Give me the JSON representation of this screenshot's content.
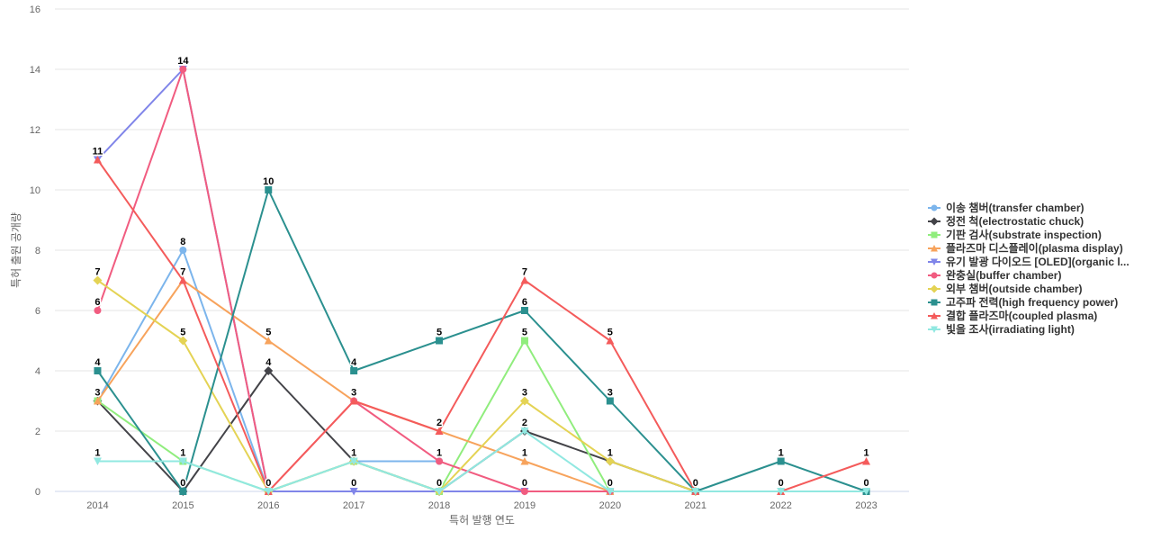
{
  "chart_data": {
    "type": "line",
    "title": "",
    "xlabel": "특허 발행 연도",
    "ylabel": "특허 출원 공개량",
    "x": [
      "2014",
      "2015",
      "2016",
      "2017",
      "2018",
      "2019",
      "2020",
      "2021",
      "2022",
      "2023"
    ],
    "ylim": [
      0,
      16
    ],
    "yticks": [
      0,
      2,
      4,
      6,
      8,
      10,
      12,
      14,
      16
    ],
    "grid": true,
    "legend_position": "right",
    "series": [
      {
        "name": "이송 챔버(transfer chamber)",
        "color": "#7cb5ec",
        "marker": "circle",
        "values": [
          3,
          8,
          0,
          1,
          1,
          null,
          null,
          null,
          null,
          null
        ],
        "labels": [
          null,
          "8",
          null,
          "1",
          "1",
          null,
          null,
          null,
          null,
          null
        ]
      },
      {
        "name": "정전 척(electrostatic chuck)",
        "color": "#434348",
        "marker": "diamond",
        "values": [
          3,
          0,
          4,
          1,
          0,
          2,
          1,
          0,
          null,
          null
        ],
        "labels": [
          null,
          "0",
          "4",
          null,
          "0",
          "2",
          null,
          null,
          null,
          null
        ]
      },
      {
        "name": "기판 검사(substrate inspection)",
        "color": "#90ed7d",
        "marker": "square",
        "values": [
          3,
          1,
          0,
          1,
          0,
          5,
          0,
          0,
          null,
          null
        ],
        "labels": [
          null,
          null,
          null,
          null,
          null,
          "5",
          null,
          null,
          null,
          null
        ]
      },
      {
        "name": "플라즈마 디스플레이(plasma display)",
        "color": "#f7a35c",
        "marker": "triangle",
        "values": [
          3,
          7,
          5,
          3,
          2,
          1,
          0,
          0,
          0,
          null
        ],
        "labels": [
          "3",
          "7",
          "5",
          null,
          null,
          "1",
          null,
          null,
          "0",
          null
        ]
      },
      {
        "name": "유기 발광 다이오드 [OLED](organic l...",
        "color": "#8085e9",
        "marker": "triangle-down",
        "values": [
          11,
          14,
          0,
          0,
          0,
          0,
          0,
          0,
          null,
          null
        ],
        "labels": [
          null,
          null,
          null,
          "0",
          null,
          null,
          null,
          null,
          null,
          null
        ]
      },
      {
        "name": "완충실(buffer chamber)",
        "color": "#f15c80",
        "marker": "circle",
        "values": [
          6,
          14,
          0,
          3,
          1,
          0,
          0,
          null,
          null,
          null
        ],
        "labels": [
          "6",
          "14",
          null,
          null,
          null,
          "0",
          "0",
          null,
          null,
          null
        ]
      },
      {
        "name": "외부 챔버(outside chamber)",
        "color": "#e4d354",
        "marker": "diamond",
        "values": [
          7,
          5,
          0,
          1,
          0,
          3,
          1,
          0,
          null,
          null
        ],
        "labels": [
          "7",
          "5",
          null,
          null,
          null,
          "3",
          "1",
          null,
          null,
          null
        ]
      },
      {
        "name": "고주파 전력(high frequency power)",
        "color": "#2b908f",
        "marker": "square",
        "values": [
          4,
          0,
          10,
          4,
          5,
          6,
          3,
          0,
          1,
          0
        ],
        "labels": [
          "4",
          null,
          "10",
          "4",
          "5",
          "6",
          "3",
          "0",
          "1",
          "0"
        ]
      },
      {
        "name": "결합 플라즈마(coupled plasma)",
        "color": "#f45b5b",
        "marker": "triangle",
        "values": [
          11,
          7,
          0,
          3,
          2,
          7,
          5,
          0,
          0,
          1
        ],
        "labels": [
          "11",
          null,
          "0",
          "3",
          "2",
          "7",
          "5",
          null,
          null,
          "1"
        ]
      },
      {
        "name": "빛을 조사(irradiating light)",
        "color": "#91e8e1",
        "marker": "triangle-down",
        "values": [
          1,
          1,
          0,
          1,
          0,
          2,
          0,
          0,
          0,
          0
        ],
        "labels": [
          "1",
          "1",
          null,
          "1",
          "0",
          null,
          null,
          null,
          null,
          null
        ]
      }
    ]
  }
}
